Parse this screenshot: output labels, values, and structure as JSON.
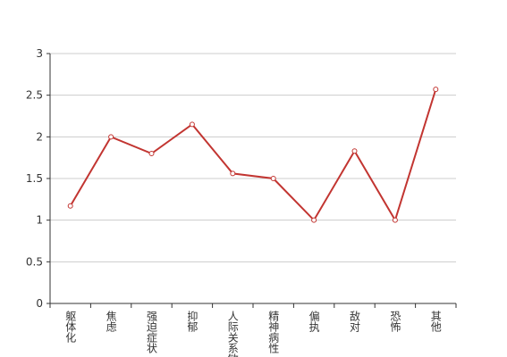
{
  "chart_data": {
    "type": "line",
    "categories": [
      "躯体化",
      "焦虑",
      "强迫症状",
      "抑郁",
      "人际关系敏感",
      "精神病性",
      "偏执",
      "敌对",
      "恐怖",
      "其他"
    ],
    "values": [
      1.17,
      2.0,
      1.8,
      2.15,
      1.56,
      1.5,
      1.0,
      1.83,
      1.0,
      2.57
    ],
    "color": "#c23531",
    "ylim": [
      0,
      3
    ],
    "yticks": [
      0,
      0.5,
      1,
      1.5,
      2,
      2.5,
      3
    ],
    "grid": true
  }
}
